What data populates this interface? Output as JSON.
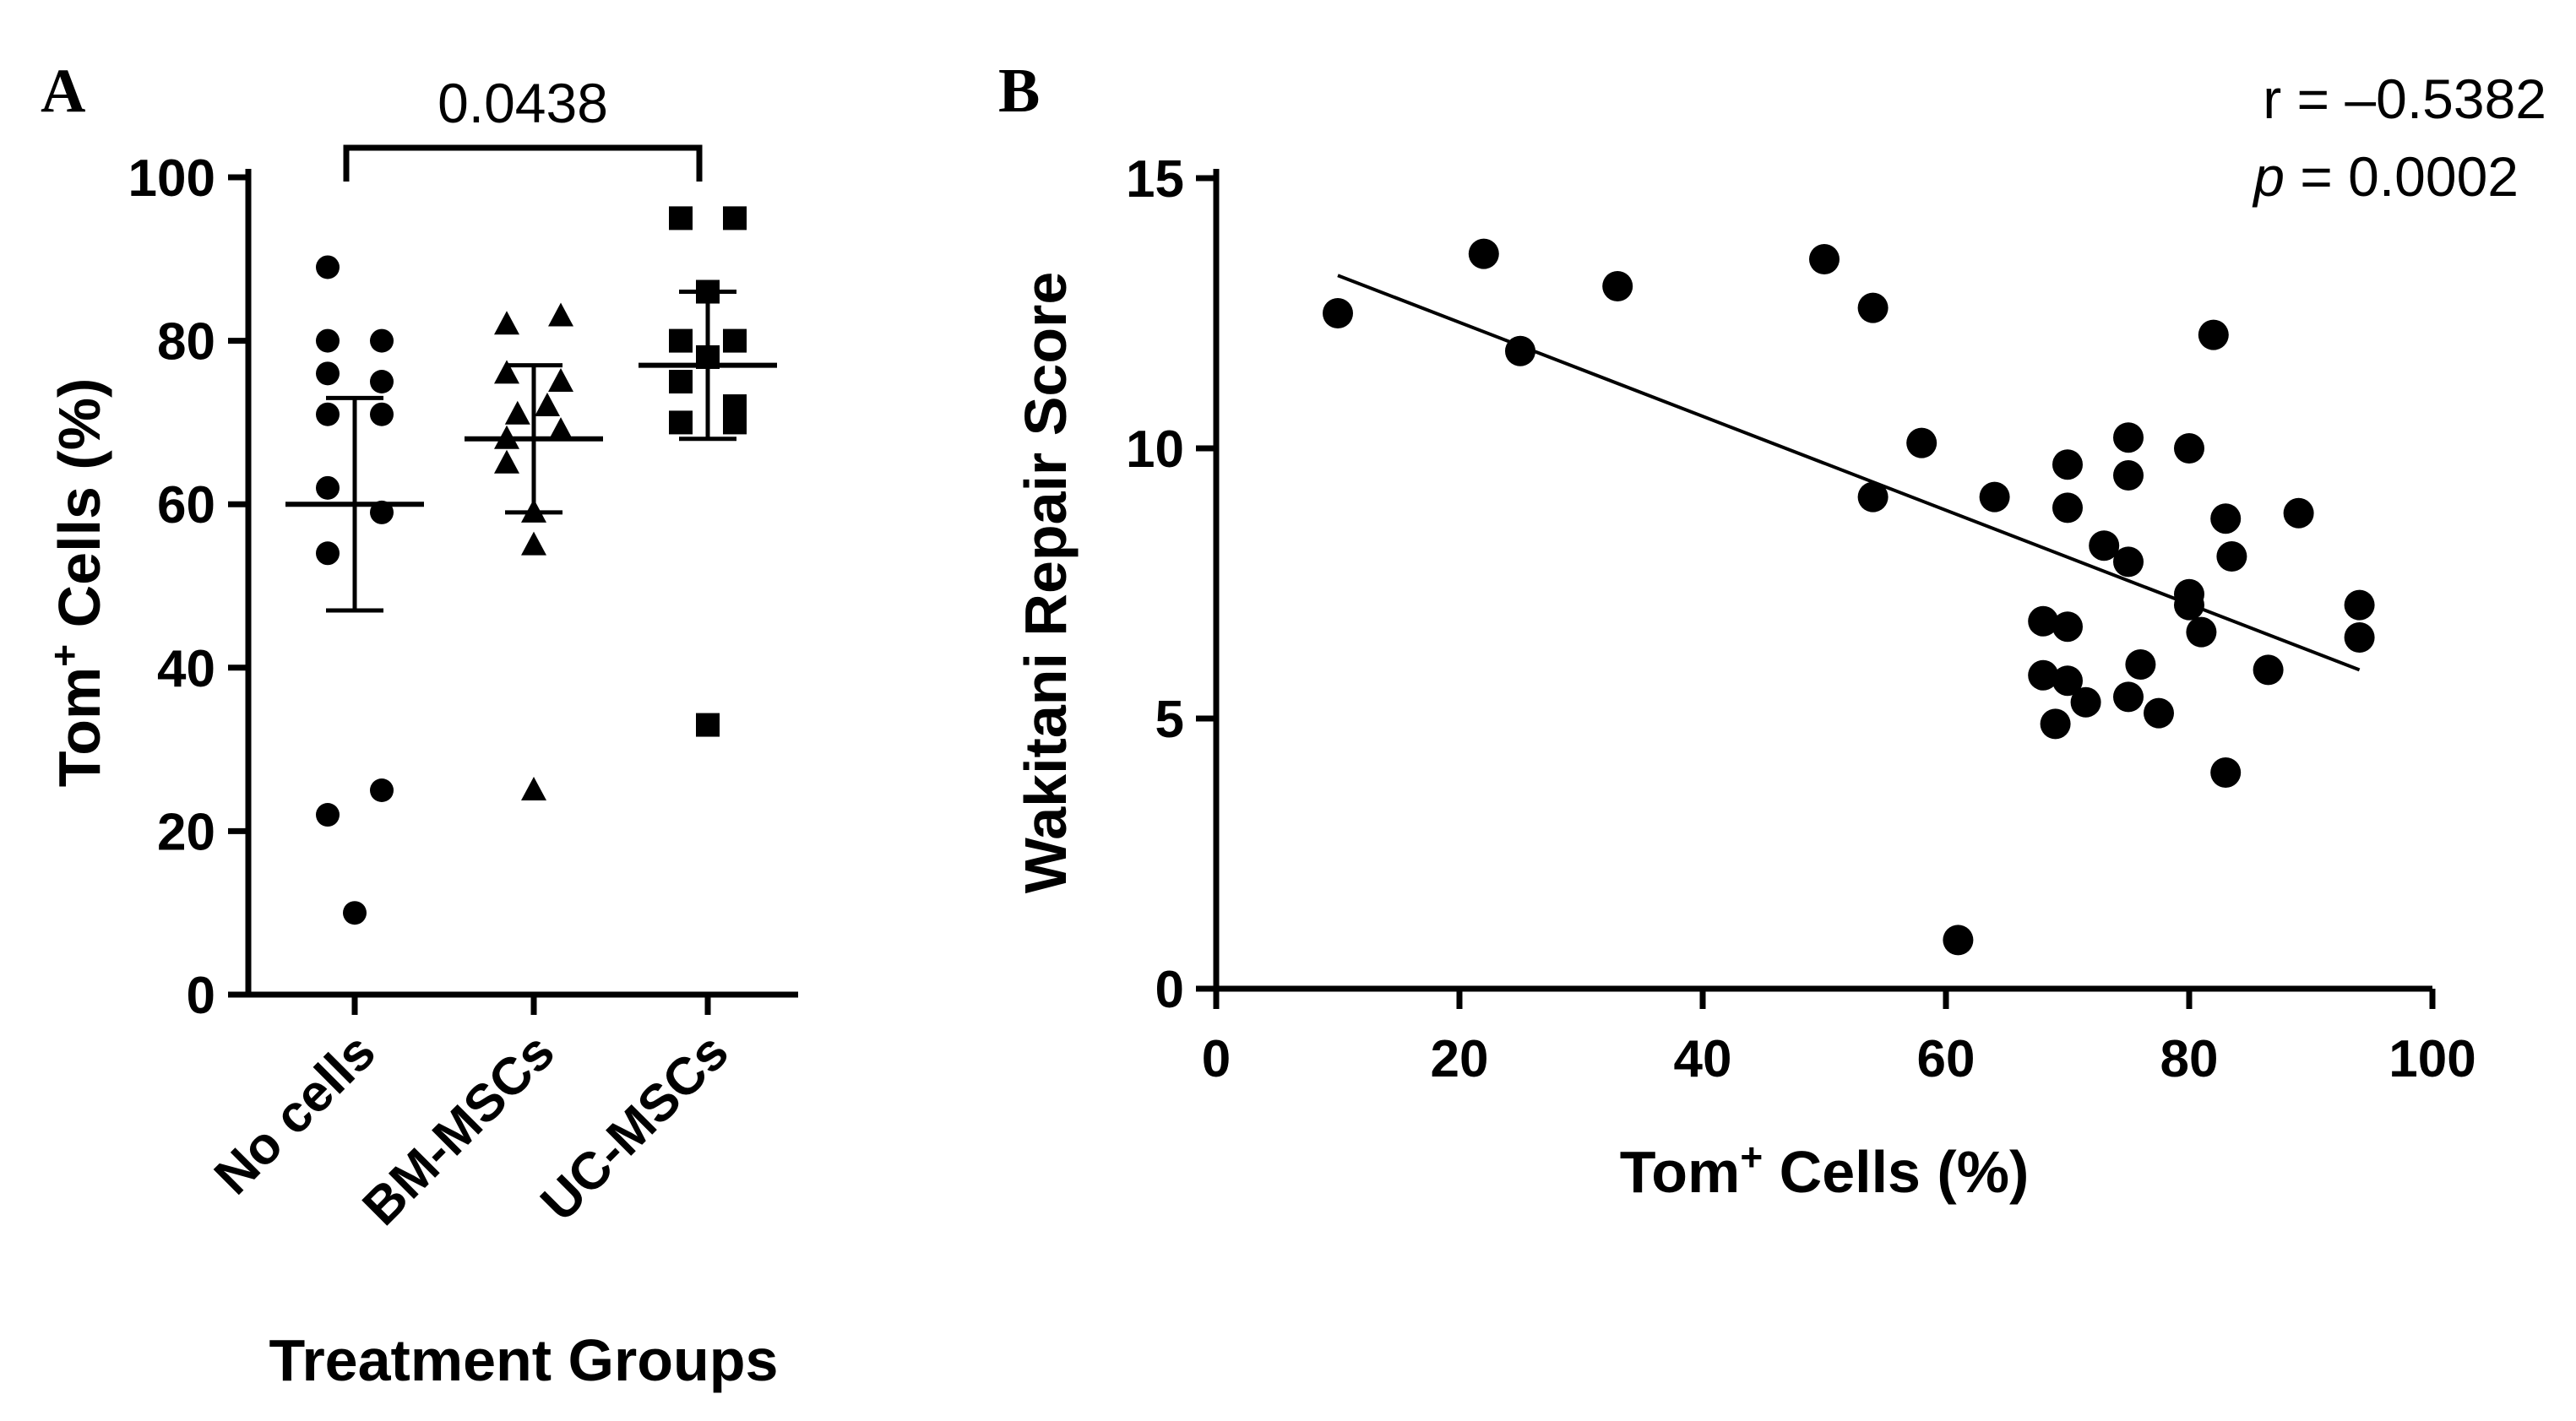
{
  "chart_data": [
    {
      "type": "scatter",
      "panel": "A",
      "title": "",
      "xlabel": "Treatment Groups",
      "ylabel": "Tom",
      "ylabel_sup": "+",
      "ylabel_rest": " Cells (%)",
      "ylim": [
        0,
        100
      ],
      "yticks": [
        "0",
        "20",
        "40",
        "60",
        "80",
        "100"
      ],
      "categories": [
        "No cells",
        "BM-MSCs",
        "UC-MSCs"
      ],
      "series": [
        {
          "name": "No cells",
          "marker": "circle",
          "values": [
            89,
            80,
            80,
            76,
            75,
            71,
            71,
            62,
            59,
            54,
            25,
            22,
            10
          ],
          "jitter": [
            -1,
            -1,
            1,
            -1,
            1,
            -1,
            1,
            -1,
            1,
            -1,
            1,
            -1,
            0
          ],
          "mean": 60,
          "sd": [
            47,
            73
          ]
        },
        {
          "name": "BM-MSCs",
          "marker": "triangle",
          "values": [
            83,
            82,
            76,
            75,
            72,
            71,
            69,
            68,
            65,
            59,
            55,
            25
          ],
          "jitter": [
            1,
            -1,
            -1,
            1,
            0.5,
            -0.6,
            1,
            -1,
            -1,
            0,
            0,
            0
          ],
          "mean": 68,
          "sd": [
            59,
            77
          ]
        },
        {
          "name": "UC-MSCs",
          "marker": "square",
          "values": [
            95,
            95,
            86,
            80,
            80,
            78,
            75,
            72,
            70,
            70,
            33
          ],
          "jitter": [
            -1,
            1,
            0,
            -1,
            1,
            0,
            -1,
            1,
            -1,
            1,
            0
          ],
          "mean": 77,
          "sd": [
            68,
            86
          ]
        }
      ],
      "significance": {
        "groups": [
          "No cells",
          "UC-MSCs"
        ],
        "label": "0.0438"
      }
    },
    {
      "type": "scatter",
      "panel": "B",
      "title": "",
      "xlabel": "Tom",
      "xlabel_sup": "+",
      "xlabel_rest": " Cells (%)",
      "ylabel": "Wakitani Repair Score",
      "xlim": [
        0,
        100
      ],
      "ylim": [
        0,
        15
      ],
      "xticks": [
        "0",
        "20",
        "40",
        "60",
        "80",
        "100"
      ],
      "yticks": [
        "0",
        "5",
        "10",
        "15"
      ],
      "points": [
        [
          10,
          12.5
        ],
        [
          22,
          13.6
        ],
        [
          25,
          11.8
        ],
        [
          33,
          13.0
        ],
        [
          50,
          13.5
        ],
        [
          54,
          12.6
        ],
        [
          54,
          9.1
        ],
        [
          58,
          10.1
        ],
        [
          64,
          9.1
        ],
        [
          61,
          0.9
        ],
        [
          68,
          6.8
        ],
        [
          68,
          5.8
        ],
        [
          69,
          4.9
        ],
        [
          70,
          9.7
        ],
        [
          70,
          8.9
        ],
        [
          70,
          6.7
        ],
        [
          70,
          5.7
        ],
        [
          71.5,
          5.3
        ],
        [
          73,
          8.2
        ],
        [
          75,
          10.2
        ],
        [
          75,
          9.5
        ],
        [
          75,
          7.9
        ],
        [
          75,
          5.4
        ],
        [
          76,
          6.0
        ],
        [
          77.5,
          5.1
        ],
        [
          80,
          10.0
        ],
        [
          80,
          7.3
        ],
        [
          80,
          7.1
        ],
        [
          81,
          6.6
        ],
        [
          82,
          12.1
        ],
        [
          83,
          8.7
        ],
        [
          83,
          4.0
        ],
        [
          83.5,
          8.0
        ],
        [
          86.5,
          5.9
        ],
        [
          89,
          8.8
        ],
        [
          94,
          7.1
        ],
        [
          94,
          6.5
        ]
      ],
      "regression": {
        "x": [
          10,
          94
        ],
        "y": [
          13.2,
          5.9
        ]
      },
      "stats": {
        "r_label": "r = –0.5382",
        "p_symbol": "p",
        "p_rest": " = 0.0002"
      }
    }
  ]
}
